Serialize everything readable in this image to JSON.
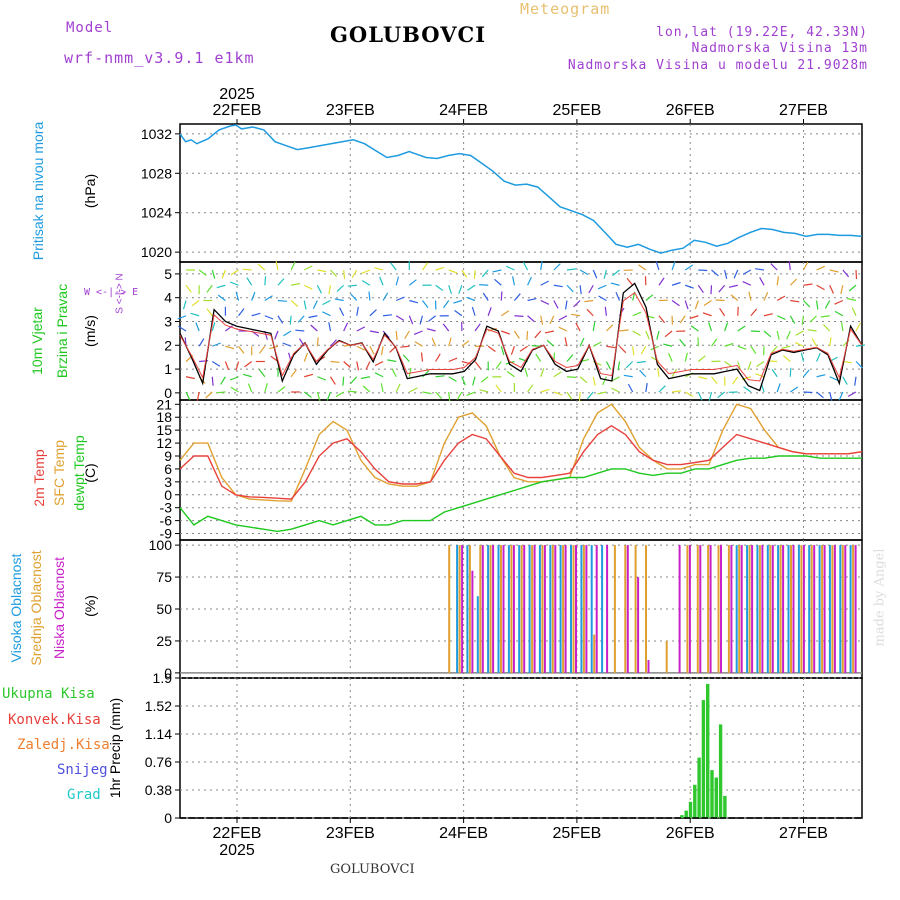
{
  "header": {
    "model_label": "Model",
    "model_value": "wrf-nmm_v3.9.1  e1km",
    "station": "GOLUBOVCI",
    "meteogram": "Meteogram",
    "lonlat": "lon,lat (19.22E, 42.33N)",
    "altitude": "Nadmorska Visina 13m",
    "model_altitude": "Nadmorska Visina u modelu 21.9028m",
    "footer_station": "GOLUBOVCI",
    "watermark": "made by Angel"
  },
  "colors": {
    "pressure": "#1e9be0",
    "temp2m": "#e8413c",
    "sfc_temp": "#e0a030",
    "dewpt": "#1ec81e",
    "high_cloud": "#1e9be0",
    "mid_cloud": "#e0a030",
    "low_cloud": "#c820c8",
    "precip": "#2ec82e",
    "purple_text": "#a040d0",
    "wind_speed": "#000000",
    "wind_marks": "#e8413c"
  },
  "time_axis": {
    "year": "2025",
    "days": [
      "22FEB",
      "23FEB",
      "24FEB",
      "25FEB",
      "26FEB",
      "27FEB"
    ]
  },
  "panels": {
    "pressure": {
      "title": "Pritisak na nivou mora",
      "unit": "(hPa)"
    },
    "wind": {
      "title1": "10m Vjetar",
      "title2": "Brzina i Pravac",
      "unit": "(m/s)",
      "compass": "W  <-|->  E",
      "compass2": "S <-|-> N"
    },
    "temp": {
      "title1": "2m Temp",
      "title2": "SFC Temp",
      "title3": "dewpt Temp",
      "unit": "(C)"
    },
    "cloud": {
      "title1": "Visoka Oblacnost",
      "title2": "Srednja Oblacnost",
      "title3": "Niska Oblacnost",
      "unit": "(%)"
    },
    "precip": {
      "unit": "1hr Precip (mm)",
      "legend": [
        "Ukupna Kisa",
        "Konvek.Kisa",
        "Zaledj.Kisa",
        "Snijeg",
        "Grad"
      ]
    }
  },
  "chart_data": [
    {
      "type": "line",
      "ylabel": "(hPa)",
      "ylim": [
        1019,
        1033
      ],
      "yticks": [
        1020,
        1024,
        1028,
        1032
      ],
      "x": [
        0,
        0.1,
        0.2,
        0.3,
        0.5,
        0.7,
        0.9,
        1.0,
        1.1,
        1.3,
        1.5,
        1.7,
        1.9,
        2.1,
        2.3,
        2.5,
        2.7,
        2.9,
        3.1,
        3.3,
        3.5,
        3.7,
        3.9,
        4.1,
        4.2,
        4.4,
        4.6,
        4.8,
        5.0,
        5.2,
        5.4,
        5.6,
        5.8,
        6.0,
        6.2,
        6.4,
        6.6,
        6.8,
        7.0,
        7.2,
        7.4,
        7.6,
        7.8,
        8.0,
        8.2,
        8.4,
        8.6,
        8.8,
        9.0,
        9.2,
        9.4,
        9.6,
        9.8,
        10.0,
        10.2,
        10.4,
        10.6,
        10.8,
        11.0,
        11.2,
        11.4,
        11.6,
        11.8,
        12.0,
        12.2
      ],
      "series": [
        {
          "values": [
            1032.0,
            1031.2,
            1031.4,
            1031.0,
            1031.5,
            1032.4,
            1032.8,
            1032.9,
            1032.5,
            1032.7,
            1032.4,
            1031.2,
            1030.8,
            1030.4,
            1030.6,
            1030.8,
            1031.0,
            1031.2,
            1031.4,
            1031.0,
            1030.3,
            1029.6,
            1029.8,
            1030.2,
            1030.0,
            1029.6,
            1029.5,
            1029.8,
            1030.0,
            1029.8,
            1029.0,
            1028.2,
            1027.2,
            1026.8,
            1026.9,
            1026.6,
            1025.6,
            1024.6,
            1024.2,
            1023.8,
            1023.2,
            1022.0,
            1020.8,
            1020.5,
            1020.8,
            1020.3,
            1019.9,
            1020.2,
            1020.4,
            1021.2,
            1021.0,
            1020.6,
            1020.9,
            1021.5,
            1022.0,
            1022.4,
            1022.3,
            1022.0,
            1021.9,
            1021.6,
            1021.8,
            1021.8,
            1021.7,
            1021.7,
            1021.6
          ]
        }
      ]
    },
    {
      "type": "line",
      "ylabel": "(m/s)",
      "ylim": [
        -0.3,
        5.5
      ],
      "yticks": [
        0,
        1,
        2,
        3,
        4,
        5
      ],
      "x": [
        0,
        0.2,
        0.4,
        0.6,
        0.8,
        1.0,
        1.2,
        1.4,
        1.6,
        1.8,
        2.0,
        2.2,
        2.4,
        2.6,
        2.8,
        3.0,
        3.2,
        3.4,
        3.6,
        3.8,
        4.0,
        4.2,
        4.4,
        4.6,
        4.8,
        5.0,
        5.2,
        5.4,
        5.6,
        5.8,
        6.0,
        6.2,
        6.4,
        6.6,
        6.8,
        7.0,
        7.2,
        7.4,
        7.6,
        7.8,
        8.0,
        8.2,
        8.4,
        8.6,
        8.8,
        9.0,
        9.2,
        9.4,
        9.6,
        9.8,
        10.0,
        10.2,
        10.4,
        10.6,
        10.8,
        11.0,
        11.2,
        11.4,
        11.6,
        11.8,
        12.0
      ],
      "series": [
        {
          "values": [
            2.5,
            1.5,
            0.4,
            3.5,
            3.0,
            2.8,
            2.7,
            2.6,
            2.5,
            0.5,
            1.6,
            2.1,
            1.2,
            1.8,
            2.2,
            2.0,
            2.1,
            1.3,
            2.5,
            1.9,
            0.6,
            0.7,
            0.8,
            0.8,
            0.8,
            0.9,
            1.4,
            2.8,
            2.6,
            1.2,
            0.9,
            1.8,
            2.0,
            1.2,
            0.9,
            1.0,
            2.0,
            0.6,
            0.5,
            4.2,
            4.6,
            3.6,
            1.2,
            0.6,
            0.7,
            0.8,
            0.8,
            0.8,
            0.9,
            1.0,
            0.3,
            0.1,
            1.6,
            1.8,
            1.7,
            1.8,
            1.9,
            1.6,
            0.4,
            2.8,
            2.0
          ]
        }
      ]
    },
    {
      "type": "line",
      "ylabel": "(C)",
      "ylim": [
        -10.5,
        22
      ],
      "yticks": [
        -9,
        -6,
        -3,
        0,
        3,
        6,
        9,
        12,
        15,
        18,
        21
      ],
      "x": [
        0,
        0.5,
        1.0,
        1.5,
        2.0,
        2.5,
        3.0,
        3.5,
        4.0,
        4.5,
        5.0,
        5.5,
        6.0,
        6.5,
        7.0,
        7.5,
        8.0,
        8.5,
        9.0,
        9.5,
        10.0,
        10.5,
        11.0,
        11.5,
        12.0,
        12.5,
        13.0,
        13.5,
        14.0,
        14.5,
        15.0,
        15.5,
        16.0,
        16.5,
        17.0,
        17.5,
        18.0,
        18.5,
        19.0,
        19.5,
        20.0,
        20.5,
        21.0,
        21.5,
        22.0,
        22.5,
        23.0,
        23.5,
        24.0,
        24.5
      ],
      "series": [
        {
          "values": [
            6,
            9,
            9,
            2,
            0,
            -0.5,
            -0.6,
            -0.8,
            -1,
            3,
            9,
            12,
            13,
            10,
            6,
            3,
            2.5,
            2.5,
            3,
            8,
            12,
            14,
            13,
            9,
            5,
            4,
            4,
            4.5,
            5,
            10,
            14,
            16,
            14,
            10,
            8,
            7,
            7,
            7.5,
            8,
            11,
            14,
            13,
            12,
            11,
            10,
            9.5,
            9.5,
            9.5,
            9.5,
            10
          ]
        },
        {
          "values": [
            8,
            12,
            12,
            4,
            0,
            -1,
            -1.2,
            -1.4,
            -1.5,
            6,
            14,
            17,
            15,
            8,
            4,
            2.5,
            2,
            2,
            3,
            12,
            18,
            19,
            16,
            9,
            4,
            3,
            3,
            3.5,
            4,
            13,
            19,
            21,
            17,
            11,
            8,
            6,
            6,
            7,
            7,
            15,
            21,
            20,
            15,
            11,
            10,
            9.5,
            9.5,
            9.5,
            9.5,
            10
          ]
        },
        {
          "values": [
            -3,
            -7,
            -5,
            -6,
            -7,
            -7.5,
            -8,
            -8.5,
            -8,
            -7,
            -6,
            -7,
            -6,
            -5,
            -7,
            -7,
            -6,
            -6,
            -6,
            -4,
            -3,
            -2,
            -1,
            0,
            1,
            2,
            3,
            3.5,
            4,
            4,
            5,
            6,
            6,
            5,
            4.5,
            5,
            5,
            6,
            6,
            7,
            8,
            8.5,
            8.5,
            9,
            9,
            9,
            8.5,
            8.5,
            8.5,
            8.5
          ]
        }
      ]
    },
    {
      "type": "bar",
      "ylabel": "(%)",
      "ylim": [
        -4,
        104
      ],
      "yticks": [
        0,
        25,
        50,
        75,
        100
      ],
      "series": [
        {
          "values": [
            0,
            0,
            0,
            100,
            100,
            60,
            100,
            100,
            100,
            100,
            100,
            100,
            100,
            100,
            100,
            100,
            100,
            100,
            0,
            0,
            0,
            0,
            0,
            0,
            0,
            0,
            0,
            0,
            0,
            0,
            100,
            100,
            100,
            100,
            100,
            100,
            100,
            100,
            100,
            100,
            100,
            100
          ]
        },
        {
          "values": [
            0,
            0,
            100,
            100,
            100,
            100,
            100,
            100,
            100,
            100,
            100,
            100,
            100,
            100,
            100,
            100,
            30,
            0,
            100,
            100,
            100,
            100,
            0,
            25,
            0,
            100,
            100,
            100,
            100,
            100,
            100,
            100,
            100,
            100,
            100,
            100,
            100,
            100,
            100,
            100,
            100,
            100
          ]
        },
        {
          "values": [
            0,
            0,
            0,
            100,
            80,
            100,
            100,
            100,
            100,
            100,
            100,
            100,
            100,
            100,
            100,
            100,
            100,
            100,
            0,
            100,
            75,
            10,
            0,
            0,
            100,
            100,
            100,
            100,
            100,
            100,
            100,
            100,
            100,
            100,
            100,
            100,
            100,
            100,
            100,
            100,
            100,
            100
          ]
        }
      ]
    },
    {
      "type": "bar",
      "ylabel": "1hr Precip (mm)",
      "ylim": [
        0,
        1.9
      ],
      "yticks": [
        0,
        0.38,
        0.76,
        1.14,
        1.52,
        1.9
      ],
      "x": [
        26.0,
        26.05,
        26.1,
        26.15,
        26.2,
        26.25,
        26.3,
        26.35,
        26.4,
        26.45,
        26.5,
        26.55,
        26.6
      ],
      "series": [
        {
          "values": [
            0.04,
            0.1,
            0.22,
            0.45,
            0.82,
            1.6,
            1.82,
            0.65,
            0.55,
            1.27,
            0.3,
            0,
            0
          ]
        }
      ]
    }
  ]
}
